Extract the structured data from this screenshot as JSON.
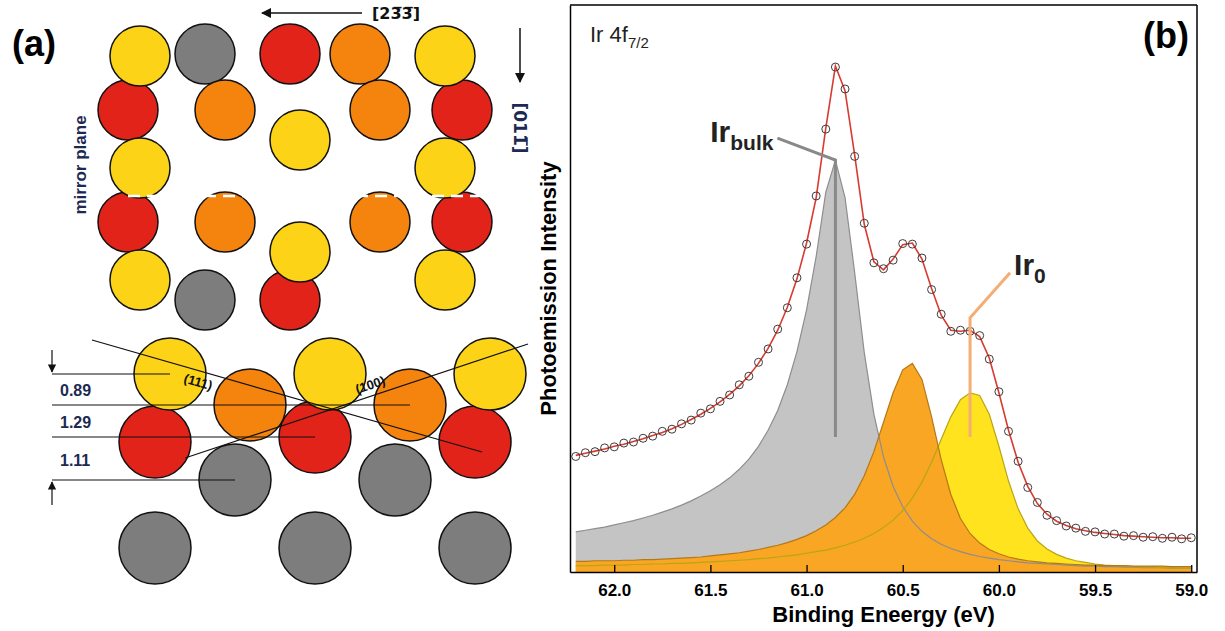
{
  "chart_data": {
    "type": "line",
    "panel_label": "(b)",
    "title": "Ir 4f",
    "title_subscript": "7/2",
    "x_label": "Binding Eneergy (eV)",
    "y_label": "Photoemission Intensity",
    "x": [
      62.2,
      62.15,
      62.1,
      62.05,
      62.0,
      61.95,
      61.9,
      61.85,
      61.8,
      61.75,
      61.7,
      61.65,
      61.6,
      61.55,
      61.5,
      61.45,
      61.4,
      61.35,
      61.3,
      61.25,
      61.2,
      61.15,
      61.1,
      61.05,
      61.0,
      60.95,
      60.9,
      60.85,
      60.8,
      60.75,
      60.7,
      60.65,
      60.6,
      60.55,
      60.5,
      60.45,
      60.4,
      60.35,
      60.3,
      60.25,
      60.2,
      60.15,
      60.1,
      60.05,
      60.0,
      59.95,
      59.9,
      59.85,
      59.8,
      59.75,
      59.7,
      59.65,
      59.6,
      59.55,
      59.5,
      59.45,
      59.4,
      59.35,
      59.3,
      59.25,
      59.2,
      59.15,
      59.1,
      59.05,
      59.0
    ],
    "xlim": [
      62.23,
      58.97
    ],
    "xticks": [
      {
        "value": 62,
        "label": "62.0"
      },
      61.5,
      {
        "value": 61,
        "label": "61.0"
      },
      60.5,
      {
        "value": 60,
        "label": "60.0"
      },
      59.5,
      {
        "value": 59,
        "label": "59.0"
      }
    ],
    "ylim": [
      0,
      1.06
    ],
    "tick_labels": "x",
    "series": [
      {
        "type": "scatter",
        "marker": "circle",
        "color": "#3c3c3c",
        "values": [
          0.216,
          0.223,
          0.225,
          0.232,
          0.234,
          0.241,
          0.243,
          0.25,
          0.254,
          0.263,
          0.267,
          0.277,
          0.284,
          0.297,
          0.305,
          0.319,
          0.331,
          0.35,
          0.366,
          0.392,
          0.417,
          0.454,
          0.494,
          0.55,
          0.613,
          0.703,
          0.828,
          0.944,
          0.903,
          0.777,
          0.652,
          0.578,
          0.567,
          0.583,
          0.614,
          0.613,
          0.587,
          0.528,
          0.482,
          0.45,
          0.452,
          0.45,
          0.442,
          0.398,
          0.337,
          0.263,
          0.207,
          0.158,
          0.13,
          0.106,
          0.096,
          0.086,
          0.082,
          0.076,
          0.075,
          0.071,
          0.071,
          0.067,
          0.068,
          0.065,
          0.066,
          0.063,
          0.065,
          0.062,
          0.064
        ]
      },
      {
        "type": "line",
        "line_style": "solid",
        "color": "#d93a2f",
        "values": [
          0.218,
          0.222,
          0.226,
          0.23,
          0.235,
          0.239,
          0.244,
          0.249,
          0.255,
          0.261,
          0.268,
          0.276,
          0.285,
          0.295,
          0.306,
          0.318,
          0.332,
          0.348,
          0.367,
          0.39,
          0.418,
          0.452,
          0.495,
          0.548,
          0.615,
          0.7,
          0.83,
          0.946,
          0.9,
          0.78,
          0.65,
          0.58,
          0.565,
          0.585,
          0.612,
          0.615,
          0.585,
          0.53,
          0.48,
          0.452,
          0.45,
          0.452,
          0.44,
          0.4,
          0.335,
          0.265,
          0.205,
          0.16,
          0.128,
          0.108,
          0.095,
          0.087,
          0.081,
          0.077,
          0.074,
          0.072,
          0.07,
          0.068,
          0.067,
          0.066,
          0.065,
          0.064,
          0.064,
          0.063,
          0.063
        ]
      },
      {
        "type": "area",
        "color": "#c4c4c4",
        "annotation": {
          "text": "Ir",
          "subscript": "bulk"
        },
        "values": [
          0.075,
          0.078,
          0.081,
          0.084,
          0.088,
          0.092,
          0.096,
          0.101,
          0.106,
          0.112,
          0.118,
          0.125,
          0.133,
          0.142,
          0.152,
          0.163,
          0.176,
          0.192,
          0.211,
          0.235,
          0.265,
          0.302,
          0.35,
          0.412,
          0.49,
          0.59,
          0.71,
          0.77,
          0.7,
          0.56,
          0.41,
          0.295,
          0.215,
          0.16,
          0.122,
          0.095,
          0.076,
          0.062,
          0.052,
          0.044,
          0.038,
          0.033,
          0.029,
          0.026,
          0.023,
          0.021,
          0.019,
          0.017,
          0.016,
          0.015,
          0.014,
          0.013,
          0.012,
          0.011,
          0.011,
          0.01,
          0.01,
          0.009,
          0.009,
          0.008,
          0.008,
          0.008,
          0.007,
          0.007,
          0.007
        ]
      },
      {
        "type": "area",
        "color": "#ffe31f",
        "annotation": {
          "text": "Ir",
          "subscript": "0"
        },
        "values": [
          0.012,
          0.012,
          0.012,
          0.013,
          0.013,
          0.013,
          0.014,
          0.014,
          0.015,
          0.015,
          0.016,
          0.016,
          0.017,
          0.018,
          0.019,
          0.02,
          0.021,
          0.022,
          0.023,
          0.025,
          0.026,
          0.028,
          0.03,
          0.032,
          0.035,
          0.038,
          0.041,
          0.045,
          0.05,
          0.056,
          0.063,
          0.072,
          0.083,
          0.097,
          0.115,
          0.138,
          0.168,
          0.205,
          0.248,
          0.29,
          0.322,
          0.335,
          0.33,
          0.295,
          0.235,
          0.17,
          0.118,
          0.082,
          0.058,
          0.043,
          0.033,
          0.026,
          0.021,
          0.018,
          0.015,
          0.013,
          0.012,
          0.011,
          0.01,
          0.009,
          0.009,
          0.008,
          0.008,
          0.007,
          0.007
        ]
      },
      {
        "type": "area",
        "color": "#f8a623",
        "values": [
          0.02,
          0.02,
          0.021,
          0.021,
          0.021,
          0.022,
          0.022,
          0.023,
          0.023,
          0.024,
          0.025,
          0.026,
          0.027,
          0.028,
          0.03,
          0.032,
          0.034,
          0.036,
          0.039,
          0.042,
          0.046,
          0.05,
          0.055,
          0.061,
          0.068,
          0.077,
          0.088,
          0.102,
          0.12,
          0.145,
          0.18,
          0.225,
          0.28,
          0.335,
          0.378,
          0.39,
          0.36,
          0.29,
          0.21,
          0.145,
          0.1,
          0.072,
          0.054,
          0.042,
          0.034,
          0.028,
          0.024,
          0.021,
          0.019,
          0.017,
          0.016,
          0.015,
          0.014,
          0.013,
          0.013,
          0.012,
          0.012,
          0.012,
          0.011,
          0.011,
          0.011,
          0.011,
          0.01,
          0.01,
          0.01
        ]
      }
    ]
  },
  "diagram": {
    "panel_label": "(a)",
    "top_view": {
      "direction_horizontal": "[23̅3̅]",
      "direction_vertical": "[011̅]",
      "mirror_plane": "mirror plane"
    },
    "side_view": {
      "planes": [
        "(111)",
        "(100)"
      ],
      "spacings": [
        0.89,
        1.29,
        1.11
      ]
    }
  }
}
